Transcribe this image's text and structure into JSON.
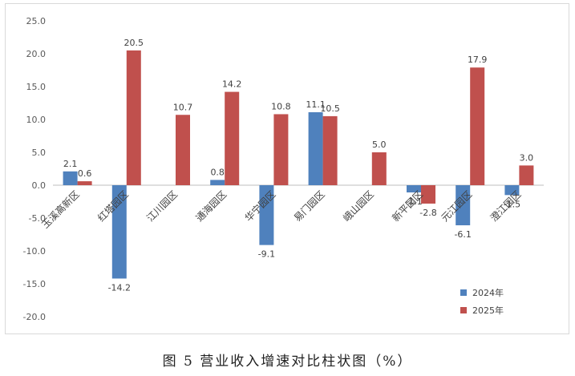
{
  "caption": "图 5 营业收入增速对比柱状图（%）",
  "chart_data": {
    "type": "bar",
    "categories": [
      "玉溪高新区",
      "红塔园区",
      "江川园区",
      "通海园区",
      "华宁园区",
      "易门园区",
      "峨山园区",
      "新平园区",
      "元江园区",
      "澄江园区"
    ],
    "series": [
      {
        "name": "2024年",
        "color": "#4f81bd",
        "values": [
          2.1,
          -14.2,
          null,
          0.8,
          -9.1,
          11.1,
          null,
          -1.1,
          -6.1,
          -1.5
        ]
      },
      {
        "name": "2025年",
        "color": "#c0504d",
        "values": [
          0.6,
          20.5,
          10.7,
          14.2,
          10.8,
          10.5,
          5.0,
          -2.8,
          17.9,
          3.0
        ]
      }
    ],
    "data_labels": {
      "2024年": [
        "2.1",
        "-14.2",
        "",
        "0.8",
        "-9.1",
        "11.1",
        "",
        "-1.1",
        "-6.1",
        "-1.5"
      ],
      "2025年": [
        "0.6",
        "20.5",
        "10.7",
        "14.2",
        "10.8",
        "10.5",
        "5.0",
        "-2.8",
        "17.9",
        "3.0"
      ]
    },
    "y_ticks": [
      "25.0",
      "20.0",
      "15.0",
      "10.0",
      "5.0",
      "0.0",
      "-5.0",
      "-10.0",
      "-15.0",
      "-20.0"
    ],
    "ylim": [
      -20,
      25
    ],
    "grid": false,
    "legend_position": "bottom-right"
  }
}
